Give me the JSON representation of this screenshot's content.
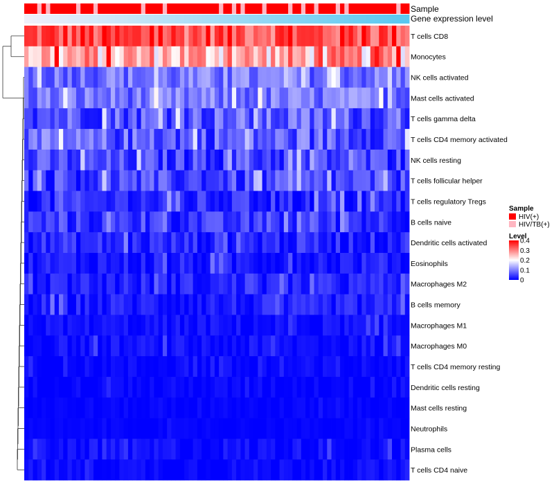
{
  "chart_data": {
    "type": "heatmap",
    "rows": [
      "T cells CD8",
      "Monocytes",
      "NK cells activated",
      "Mast cells activated",
      "T cells gamma delta",
      "T cells CD4 memory activated",
      "NK cells resting",
      "T cells follicular helper",
      "T cells regulatory  Tregs",
      "B cells naive",
      "Dendritic cells activated",
      "Eosinophils",
      "Macrophages M2",
      "B cells memory",
      "Macrophages M1",
      "Macrophages M0",
      "T cells CD4 memory resting",
      "Dendritic cells resting",
      "Mast cells resting",
      "Neutrophils",
      "Plasma cells",
      "T cells CD4 naive"
    ],
    "annotation_tracks": [
      "Sample",
      "Gene expression level"
    ],
    "samples": "HHHPHPHHHHHHPHHHPHHHHHHHHHHPHHHHPHHHHHHHHHHHHPHHPHPHHHHPHHHHHPHHPHHPHHHHPHPHHHHHHHHHHHPHH",
    "sample_groups": {
      "H": "HIV(+)",
      "P": "HIV/TB(+)"
    },
    "legend": {
      "sample_title": "Sample",
      "sample_entries": [
        {
          "label": "HIV(+)",
          "color": "#ff0000"
        },
        {
          "label": "HIV/TB(+)",
          "color": "#ffb6c1"
        }
      ],
      "level_title": "Level",
      "level_ticks": [
        0,
        0.1,
        0.2,
        0.3,
        0.4
      ],
      "level_colors": [
        "#0000ff",
        "#ffffff",
        "#ff0000"
      ],
      "level_range": [
        0,
        0.4
      ]
    },
    "row_means": [
      0.34,
      0.26,
      0.09,
      0.09,
      0.07,
      0.07,
      0.05,
      0.05,
      0.03,
      0.04,
      0.03,
      0.02,
      0.025,
      0.02,
      0.01,
      0.01,
      0.005,
      0.005,
      0.003,
      0.002,
      0.01,
      0.008
    ],
    "row_spread": [
      0.07,
      0.09,
      0.05,
      0.05,
      0.06,
      0.06,
      0.05,
      0.05,
      0.04,
      0.04,
      0.035,
      0.03,
      0.03,
      0.03,
      0.02,
      0.02,
      0.015,
      0.012,
      0.008,
      0.006,
      0.02,
      0.015
    ]
  }
}
